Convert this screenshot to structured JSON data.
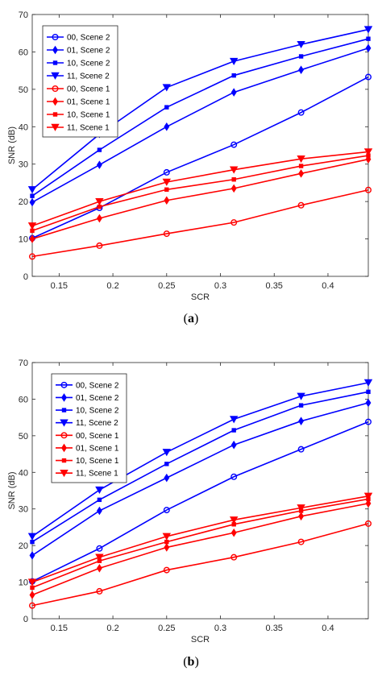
{
  "chart_data": [
    {
      "type": "line",
      "caption": "(a)",
      "caption_bold": "a",
      "xlabel": "SCR",
      "ylabel": "SNR (dB)",
      "xlim": [
        0.125,
        0.4375
      ],
      "ylim": [
        0,
        70
      ],
      "xticks": [
        "0.15",
        "0.2",
        "0.25",
        "0.3",
        "0.35",
        "0.4"
      ],
      "xtick_values": [
        0.15,
        0.2,
        0.25,
        0.3,
        0.35,
        0.4
      ],
      "yticks": [
        "0",
        "10",
        "20",
        "30",
        "40",
        "50",
        "60",
        "70"
      ],
      "ytick_values": [
        0,
        10,
        20,
        30,
        40,
        50,
        60,
        70
      ],
      "grid": false,
      "legend_position": "top-left",
      "x": [
        0.125,
        0.1875,
        0.25,
        0.3125,
        0.375,
        0.4375
      ],
      "series": [
        {
          "name": "00, Scene 2",
          "color": "#0000ff",
          "marker": "circle",
          "values": [
            10.2,
            18.3,
            27.8,
            35.2,
            43.8,
            53.3
          ]
        },
        {
          "name": "01, Scene 2",
          "color": "#0000ff",
          "marker": "diamond",
          "values": [
            19.8,
            29.8,
            40.0,
            49.2,
            55.2,
            61.0
          ]
        },
        {
          "name": "10, Scene 2",
          "color": "#0000ff",
          "marker": "square",
          "values": [
            21.5,
            33.8,
            45.2,
            53.7,
            58.8,
            63.5
          ]
        },
        {
          "name": "11, Scene 2",
          "color": "#0000ff",
          "marker": "triangle-down",
          "values": [
            23.2,
            38.0,
            50.5,
            57.5,
            62.0,
            66.0
          ]
        },
        {
          "name": "00, Scene 1",
          "color": "#ff0000",
          "marker": "circle",
          "values": [
            5.3,
            8.2,
            11.4,
            14.4,
            19.0,
            23.1
          ]
        },
        {
          "name": "01, Scene 1",
          "color": "#ff0000",
          "marker": "diamond",
          "values": [
            10.0,
            15.5,
            20.3,
            23.5,
            27.5,
            31.3
          ]
        },
        {
          "name": "10, Scene 1",
          "color": "#ff0000",
          "marker": "square",
          "values": [
            12.2,
            18.6,
            23.2,
            25.9,
            29.5,
            32.3
          ]
        },
        {
          "name": "11, Scene 1",
          "color": "#ff0000",
          "marker": "triangle-down",
          "values": [
            13.5,
            20.0,
            25.2,
            28.5,
            31.4,
            33.3
          ]
        }
      ]
    },
    {
      "type": "line",
      "caption": "(b)",
      "caption_bold": "b",
      "xlabel": "SCR",
      "ylabel": "SNR (dB)",
      "xlim": [
        0.125,
        0.4375
      ],
      "ylim": [
        0,
        70
      ],
      "xticks": [
        "0.15",
        "0.2",
        "0.25",
        "0.3",
        "0.35",
        "0.4"
      ],
      "xtick_values": [
        0.15,
        0.2,
        0.25,
        0.3,
        0.35,
        0.4
      ],
      "yticks": [
        "0",
        "10",
        "20",
        "30",
        "40",
        "50",
        "60",
        "70"
      ],
      "ytick_values": [
        0,
        10,
        20,
        30,
        40,
        50,
        60,
        70
      ],
      "grid": false,
      "legend_position": "top-left",
      "x": [
        0.125,
        0.1875,
        0.25,
        0.3125,
        0.375,
        0.4375
      ],
      "series": [
        {
          "name": "00, Scene 2",
          "color": "#0000ff",
          "marker": "circle",
          "values": [
            10.2,
            19.2,
            29.7,
            38.8,
            46.3,
            53.8
          ]
        },
        {
          "name": "01, Scene 2",
          "color": "#0000ff",
          "marker": "diamond",
          "values": [
            17.3,
            29.5,
            38.5,
            47.5,
            54.0,
            59.0
          ]
        },
        {
          "name": "10, Scene 2",
          "color": "#0000ff",
          "marker": "square",
          "values": [
            21.0,
            32.5,
            42.3,
            51.5,
            58.3,
            62.0
          ]
        },
        {
          "name": "11, Scene 2",
          "color": "#0000ff",
          "marker": "triangle-down",
          "values": [
            22.5,
            35.2,
            45.5,
            54.5,
            60.8,
            64.5
          ]
        },
        {
          "name": "00, Scene 1",
          "color": "#ff0000",
          "marker": "circle",
          "values": [
            3.6,
            7.5,
            13.3,
            16.8,
            21.0,
            26.0
          ]
        },
        {
          "name": "01, Scene 1",
          "color": "#ff0000",
          "marker": "diamond",
          "values": [
            6.5,
            13.8,
            19.5,
            23.5,
            28.0,
            31.5
          ]
        },
        {
          "name": "10, Scene 1",
          "color": "#ff0000",
          "marker": "square",
          "values": [
            8.5,
            15.8,
            21.0,
            25.8,
            29.5,
            32.7
          ]
        },
        {
          "name": "11, Scene 1",
          "color": "#ff0000",
          "marker": "triangle-down",
          "values": [
            10.0,
            16.8,
            22.5,
            27.0,
            30.3,
            33.5
          ]
        }
      ]
    }
  ]
}
